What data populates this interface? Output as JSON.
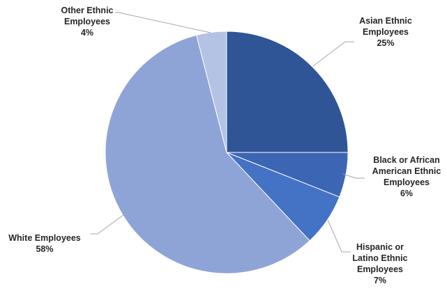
{
  "chart_data": {
    "type": "pie",
    "start_angle_deg": 0,
    "direction": "clockwise",
    "slices": [
      {
        "label_lines": [
          "Asian Ethnic",
          "Employees"
        ],
        "value_label": "25%",
        "value": 25,
        "color": "#2F5597"
      },
      {
        "label_lines": [
          "Black or African",
          "American Ethnic",
          "Employees"
        ],
        "value_label": "6%",
        "value": 6,
        "color": "#3C66B4"
      },
      {
        "label_lines": [
          "Hispanic or",
          "Latino Ethnic",
          "Employees"
        ],
        "value_label": "7%",
        "value": 7,
        "color": "#4472C4"
      },
      {
        "label_lines": [
          "White Employees"
        ],
        "value_label": "58%",
        "value": 58,
        "color": "#8FA4D6"
      },
      {
        "label_lines": [
          "Other Ethnic",
          "Employees"
        ],
        "value_label": "4%",
        "value": 4,
        "color": "#B4C2E4"
      }
    ],
    "legend": "none",
    "data_labels": "outside-with-leader-lines"
  }
}
